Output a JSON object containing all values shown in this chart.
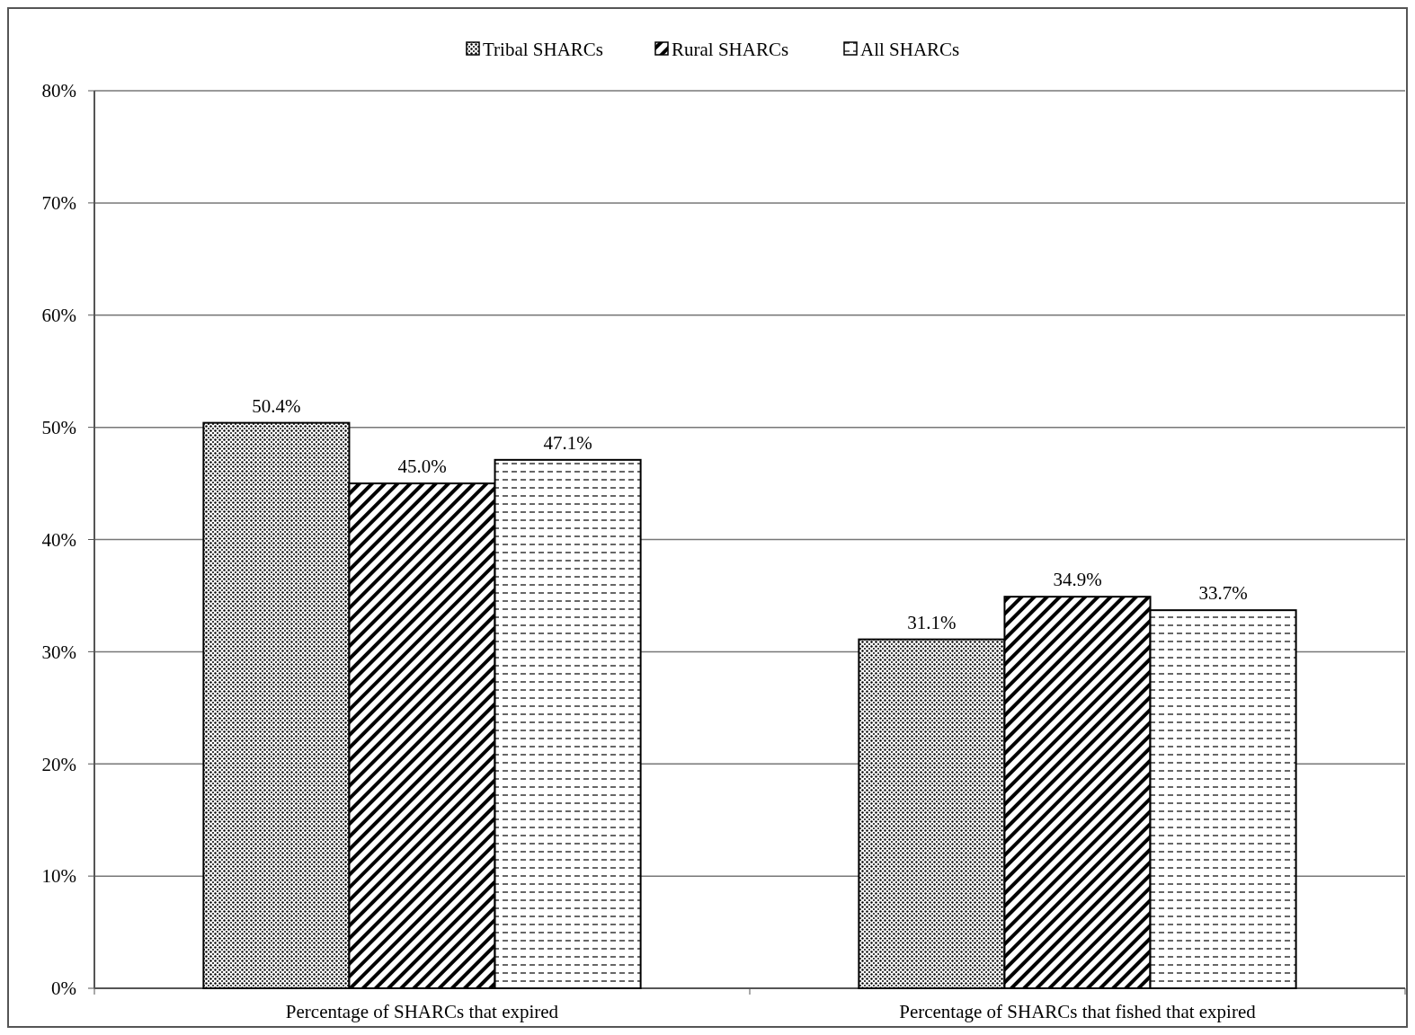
{
  "chart_data": {
    "type": "bar",
    "categories": [
      "Percentage of SHARCs that expired",
      "Percentage of SHARCs that fished that expired"
    ],
    "series": [
      {
        "name": "Tribal SHARCs",
        "color": "#000000",
        "values": [
          50.4,
          31.1
        ]
      },
      {
        "name": "Rural SHARCs",
        "color": "#000000",
        "values": [
          45.0,
          34.9
        ]
      },
      {
        "name": "All SHARCs",
        "color": "#000000",
        "values": [
          47.1,
          33.7
        ]
      }
    ],
    "value_labels": [
      [
        "50.4%",
        "31.1%"
      ],
      [
        "45.0%",
        "34.9%"
      ],
      [
        "47.1%",
        "33.7%"
      ]
    ],
    "ylim": [
      0,
      80
    ],
    "yticks": [
      {
        "value": 0,
        "label": "0%"
      },
      {
        "value": 10,
        "label": "10%"
      },
      {
        "value": 20,
        "label": "20%"
      },
      {
        "value": 30,
        "label": "30%"
      },
      {
        "value": 40,
        "label": "40%"
      },
      {
        "value": 50,
        "label": "50%"
      },
      {
        "value": 60,
        "label": "60%"
      },
      {
        "value": 70,
        "label": "70%"
      },
      {
        "value": 80,
        "label": "80%"
      }
    ],
    "grid": "y",
    "legend": "top"
  }
}
